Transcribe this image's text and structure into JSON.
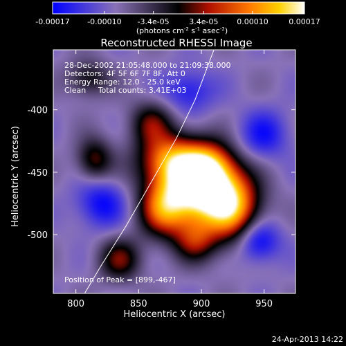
{
  "chart_data": {
    "type": "heatmap",
    "title": "Reconstructed RHESSI Image",
    "xlabel": "Heliocentric X (arcsec)",
    "ylabel": "Heliocentric Y (arcsec)",
    "xlim": [
      782,
      975
    ],
    "ylim": [
      -547,
      -352
    ],
    "x_ticks": [
      800,
      850,
      900,
      950
    ],
    "y_ticks": [
      -400,
      -450,
      -500
    ],
    "colorbar": {
      "range": [
        -0.00017,
        0.00017
      ],
      "tick_values": [
        -0.00017,
        -0.0001,
        -3.4e-05,
        3.4e-05,
        0.0001,
        0.00017
      ],
      "tick_labels": [
        "-0.00017",
        "-0.00010",
        "-3.4e-05",
        "3.4e-05",
        "0.00010",
        "0.00017"
      ],
      "unit_prefix": "(photons cm",
      "unit_exp1": "-2",
      "unit_mid": " s",
      "unit_exp2": "-1",
      "unit_mid2": " asec",
      "unit_exp3": "-2",
      "unit_suffix": ")"
    },
    "annotations": [
      "28-Dec-2002 21:05:48.000 to 21:09:38.000",
      "Detectors: 4F 5F 6F 7F 8F, Att 0",
      "Energy Range: 12.0 - 25.0 keV",
      "Clean     Total counts: 3.41E+03"
    ],
    "peak_label": "Position of Peak = [899,-467]",
    "peak": [
      899,
      -467
    ],
    "limb_curve": [
      [
        807,
        -547
      ],
      [
        820,
        -525
      ],
      [
        840,
        -493
      ],
      [
        860,
        -458
      ],
      [
        880,
        -423
      ],
      [
        895,
        -392
      ],
      [
        910,
        -352
      ]
    ],
    "sources": [
      {
        "x": 899,
        "y": -467,
        "amp": 1.0,
        "sx": 22,
        "sy": 18
      },
      {
        "x": 875,
        "y": -440,
        "amp": 0.75,
        "sx": 18,
        "sy": 15
      },
      {
        "x": 905,
        "y": -445,
        "amp": 0.7,
        "sx": 15,
        "sy": 14
      },
      {
        "x": 925,
        "y": -480,
        "amp": 0.7,
        "sx": 16,
        "sy": 20
      },
      {
        "x": 870,
        "y": -480,
        "amp": 0.6,
        "sx": 14,
        "sy": 16
      },
      {
        "x": 895,
        "y": -505,
        "amp": 0.45,
        "sx": 12,
        "sy": 12
      },
      {
        "x": 835,
        "y": -520,
        "amp": 0.45,
        "sx": 12,
        "sy": 12
      },
      {
        "x": 815,
        "y": -440,
        "amp": 0.45,
        "sx": 10,
        "sy": 12
      },
      {
        "x": 860,
        "y": -410,
        "amp": 0.4,
        "sx": 12,
        "sy": 12
      },
      {
        "x": 810,
        "y": -375,
        "amp": 0.35,
        "sx": 12,
        "sy": 10
      },
      {
        "x": 945,
        "y": -505,
        "amp": -0.45,
        "sx": 12,
        "sy": 12
      },
      {
        "x": 820,
        "y": -475,
        "amp": -0.35,
        "sx": 14,
        "sy": 14
      },
      {
        "x": 890,
        "y": -385,
        "amp": -0.3,
        "sx": 14,
        "sy": 12
      },
      {
        "x": 950,
        "y": -420,
        "amp": -0.3,
        "sx": 14,
        "sy": 14
      }
    ]
  },
  "footer": {
    "timestamp": "24-Apr-2013 14:22"
  }
}
